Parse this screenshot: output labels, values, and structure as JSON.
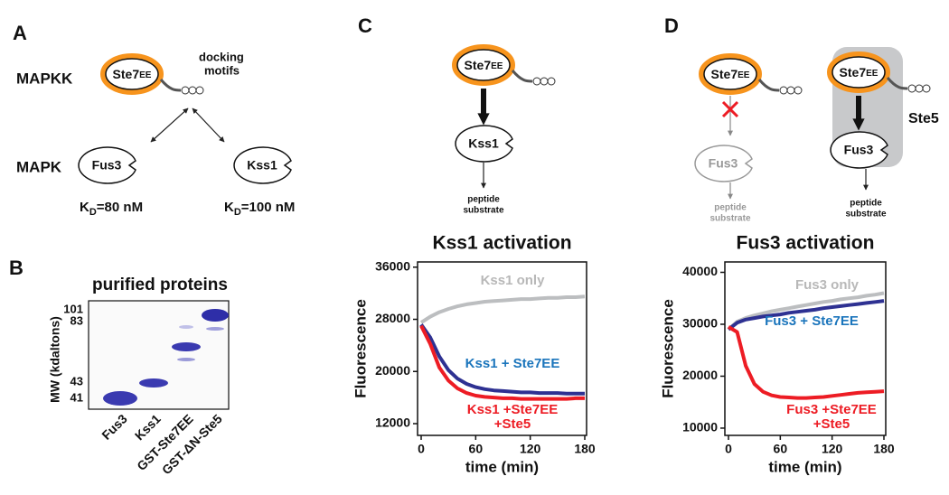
{
  "panel_labels": [
    "A",
    "B",
    "C",
    "D"
  ],
  "panel_a": {
    "mapkk": "MAPKK",
    "mapk": "MAPK",
    "ste7": "Ste7",
    "ste7_sub": "EE",
    "docking": "docking",
    "motifs": "motifs",
    "fus3": "Fus3",
    "kss1": "Kss1",
    "kd_fus3": {
      "k": "K",
      "sub": "D",
      "rest": "=80 nM"
    },
    "kd_kss1": {
      "k": "K",
      "sub": "D",
      "rest": "=100 nM"
    }
  },
  "panel_b": {
    "title": "purified proteins",
    "y_label": "MW (kdaltons)",
    "mw_markers": [
      101,
      83,
      43,
      41
    ],
    "lanes": [
      "Fus3",
      "Kss1",
      "GST-Ste7EE",
      "GST-ΔN-Ste5"
    ]
  },
  "panel_c": {
    "ste7": "Ste7",
    "ste7_sub": "EE",
    "kinase": "Kss1",
    "peptide": "peptide",
    "substrate": "substrate"
  },
  "panel_d": {
    "left": {
      "ste7": "Ste7",
      "ste7_sub": "EE",
      "kinase": "Fus3",
      "peptide": "peptide",
      "substrate": "substrate"
    },
    "right": {
      "ste7": "Ste7",
      "ste7_sub": "EE",
      "kinase": "Fus3",
      "scaffold": "Ste5",
      "peptide": "peptide",
      "substrate": "substrate"
    }
  },
  "chart_data": [
    {
      "type": "line",
      "title": "Kss1 activation",
      "x_label": "time (min)",
      "y_label": "Fluorescence",
      "x": [
        0,
        10,
        20,
        30,
        40,
        50,
        60,
        70,
        80,
        90,
        100,
        110,
        120,
        130,
        140,
        150,
        160,
        170,
        180
      ],
      "xlim": [
        0,
        180
      ],
      "xticks": [
        0,
        60,
        120,
        180
      ],
      "ylim": [
        10200,
        36800
      ],
      "yticks": [
        12000,
        20000,
        28000,
        36000
      ],
      "series": [
        {
          "name": "Kss1 only",
          "color": "#bcbec0",
          "label_color": "#b8b8b8",
          "values": [
            27500,
            28400,
            29100,
            29600,
            30000,
            30300,
            30500,
            30700,
            30800,
            30900,
            31000,
            31100,
            31100,
            31200,
            31300,
            31300,
            31400,
            31400,
            31500
          ]
        },
        {
          "name": "Kss1 + Ste7EE",
          "color": "#2e3192",
          "label_color": "#1b75bc",
          "values": [
            27200,
            25200,
            22300,
            20200,
            18900,
            18100,
            17600,
            17300,
            17100,
            17000,
            16900,
            16800,
            16800,
            16700,
            16700,
            16700,
            16600,
            16600,
            16600
          ]
        },
        {
          "name": "Kss1 +Ste7EE +Ste5",
          "color": "#ed1c24",
          "label_color": "#ed1c24",
          "values": [
            27000,
            24200,
            20600,
            18600,
            17400,
            16700,
            16300,
            16100,
            16000,
            15900,
            15900,
            15800,
            15800,
            15800,
            15800,
            15800,
            15800,
            15900,
            15900
          ]
        }
      ]
    },
    {
      "type": "line",
      "title": "Fus3 activation",
      "x_label": "time (min)",
      "y_label": "Fluorescence",
      "x": [
        0,
        10,
        20,
        30,
        40,
        50,
        60,
        70,
        80,
        90,
        100,
        110,
        120,
        130,
        140,
        150,
        160,
        170,
        180
      ],
      "xlim": [
        0,
        180
      ],
      "xticks": [
        0,
        60,
        120,
        180
      ],
      "ylim": [
        8600,
        42000
      ],
      "yticks": [
        10000,
        20000,
        30000,
        40000
      ],
      "series": [
        {
          "name": "Fus3 only",
          "color": "#bcbec0",
          "label_color": "#b8b8b8",
          "values": [
            29000,
            30500,
            31200,
            31700,
            32100,
            32500,
            32800,
            33100,
            33400,
            33700,
            34000,
            34300,
            34500,
            34800,
            35000,
            35200,
            35500,
            35700,
            36000
          ]
        },
        {
          "name": "Fus3 + Ste7EE",
          "color": "#2e3192",
          "label_color": "#1b75bc",
          "values": [
            29000,
            30300,
            30900,
            31200,
            31500,
            31700,
            31900,
            32200,
            32400,
            32600,
            32800,
            33100,
            33300,
            33500,
            33700,
            33900,
            34100,
            34300,
            34500
          ]
        },
        {
          "name": "Fus3 +Ste7EE +Ste5",
          "color": "#ed1c24",
          "label_color": "#ed1c24",
          "values": [
            29500,
            28500,
            22000,
            18500,
            17000,
            16300,
            16000,
            15900,
            15800,
            15800,
            15900,
            16000,
            16200,
            16400,
            16600,
            16800,
            16900,
            17000,
            17100
          ]
        }
      ]
    }
  ]
}
